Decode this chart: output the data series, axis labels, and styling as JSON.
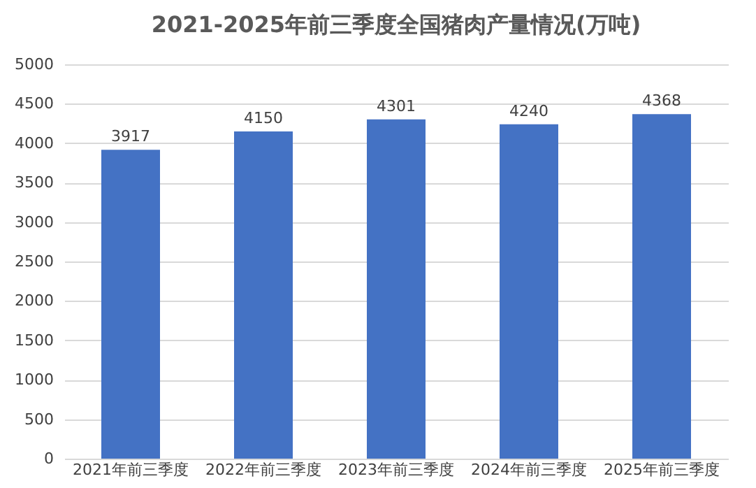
{
  "chart_data": {
    "type": "bar",
    "title": "2021-2025年前三季度全国猪肉产量情况(万吨)",
    "categories": [
      "2021年前三季度",
      "2022年前三季度",
      "2023年前三季度",
      "2024年前三季度",
      "2025年前三季度"
    ],
    "values": [
      3917,
      4150,
      4301,
      4240,
      4368
    ],
    "color": "#4472c4",
    "ylim": [
      0,
      5000
    ],
    "yticks": [
      0,
      500,
      1000,
      1500,
      2000,
      2500,
      3000,
      3500,
      4000,
      4500,
      5000
    ],
    "grid": "y",
    "data_labels": true
  }
}
